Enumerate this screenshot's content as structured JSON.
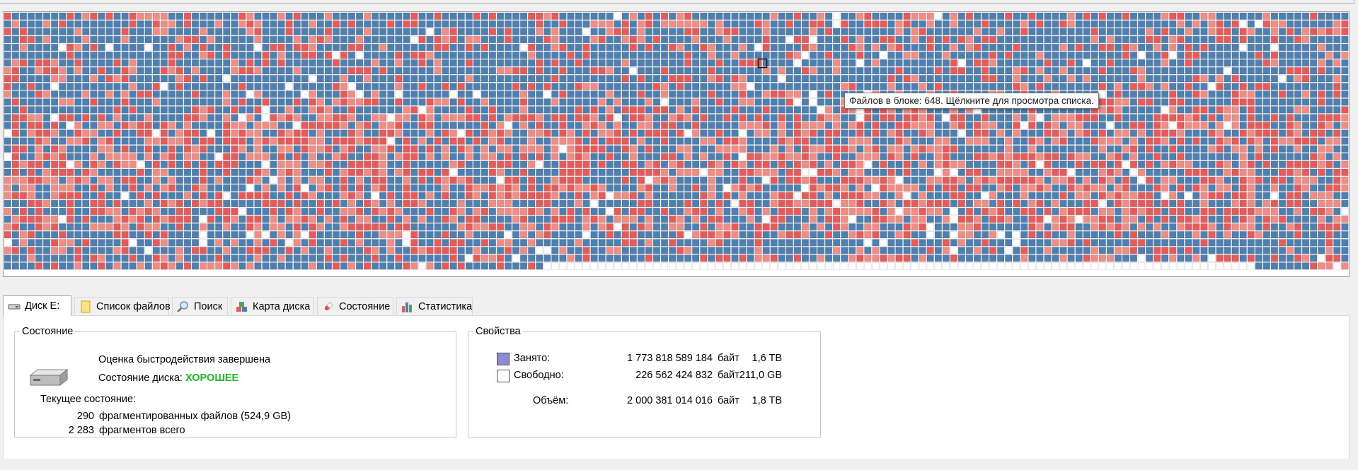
{
  "diskmap": {
    "colors": {
      "used": "#4e7fb1",
      "fragmented": "#e75a5a",
      "fragmented_light": "#f08c84",
      "free": "#ffffff",
      "hover_outline": "#1a1a1a"
    },
    "tooltip": "Файлов в блоке: 648. Щёлкните для просмотра списка."
  },
  "tabs": [
    {
      "label": "Диск E:",
      "icon": "drive-icon",
      "active": true
    },
    {
      "label": "Список файлов",
      "icon": "file-list-icon",
      "active": false
    },
    {
      "label": "Поиск",
      "icon": "magnifier-icon",
      "active": false
    },
    {
      "label": "Карта диска",
      "icon": "disk-map-icon",
      "active": false
    },
    {
      "label": "Состояние",
      "icon": "health-icon",
      "active": false
    },
    {
      "label": "Статистика",
      "icon": "statistics-icon",
      "active": false
    }
  ],
  "status": {
    "group_title": "Состояние",
    "benchmark": "Оценка быстродействия завершена",
    "disk_state_label": "Состояние диска:",
    "disk_state_value": "ХОРОШЕЕ",
    "current_label": "Текущее состояние:",
    "fragmented_count": "290",
    "fragmented_text": "фрагментированных файлов (524,9 GB)",
    "fragments_count": "2 283",
    "fragments_text": "фрагментов всего"
  },
  "properties": {
    "group_title": "Свойства",
    "used_label": "Занято:",
    "used_bytes": "1 773 818 589 184",
    "used_unit": "байт",
    "used_size": "1,6 TB",
    "used_color": "#8b8bd6",
    "free_label": "Свободно:",
    "free_bytes": "226 562 424 832",
    "free_unit": "байт",
    "free_size": "211,0 GB",
    "free_color": "#ffffff",
    "total_label": "Объём:",
    "total_bytes": "2 000 381 014 016",
    "total_unit": "байт",
    "total_size": "1,8 TB"
  }
}
